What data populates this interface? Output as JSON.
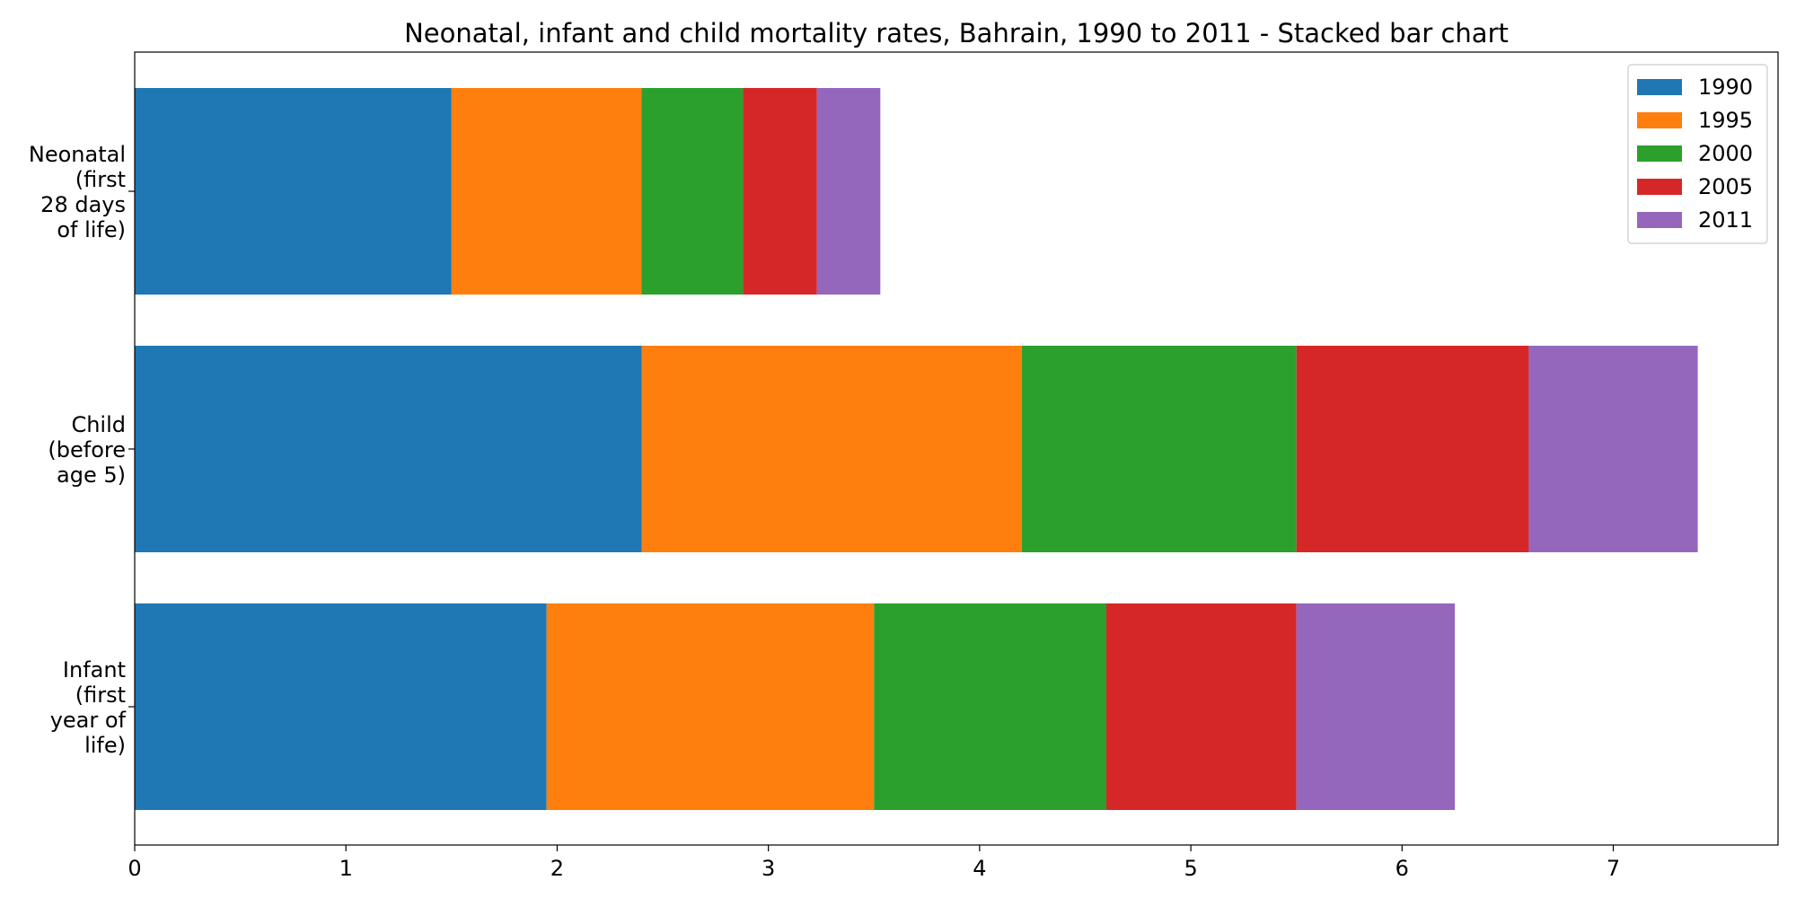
{
  "chart_data": {
    "type": "bar",
    "orientation": "horizontal",
    "stacked": true,
    "title": "Neonatal, infant and child mortality rates, Bahrain, 1990 to 2011 - Stacked bar chart",
    "xlabel": "",
    "ylabel": "",
    "xlim": [
      0,
      7.78
    ],
    "xticks": [
      0,
      1,
      2,
      3,
      4,
      5,
      6,
      7
    ],
    "categories": [
      {
        "key": "infant",
        "lines": [
          "Infant",
          "(first",
          "year of",
          "life)"
        ]
      },
      {
        "key": "child",
        "lines": [
          "Child",
          "(before",
          "age 5)"
        ]
      },
      {
        "key": "neonatal",
        "lines": [
          "Neonatal",
          "(first",
          "28 days",
          "of life)"
        ]
      }
    ],
    "series": [
      {
        "name": "1990",
        "color": "#1f77b4",
        "values": [
          1.95,
          2.4,
          1.5
        ]
      },
      {
        "name": "1995",
        "color": "#ff7f0e",
        "values": [
          1.55,
          1.8,
          0.9
        ]
      },
      {
        "name": "2000",
        "color": "#2ca02c",
        "values": [
          1.1,
          1.3,
          0.48
        ]
      },
      {
        "name": "2005",
        "color": "#d62728",
        "values": [
          0.9,
          1.1,
          0.35
        ]
      },
      {
        "name": "2011",
        "color": "#9467bd",
        "values": [
          0.75,
          0.8,
          0.3
        ]
      }
    ],
    "legend_position": "top-right",
    "grid": false
  }
}
